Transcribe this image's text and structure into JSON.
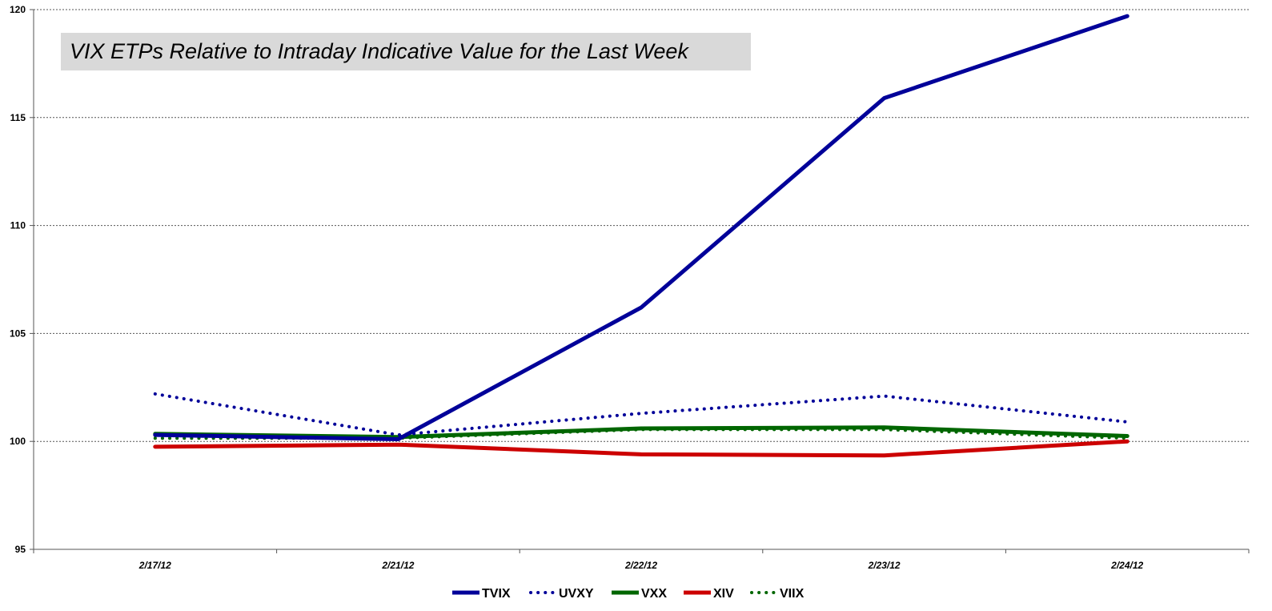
{
  "chart_data": {
    "type": "line",
    "title": "VIX ETPs Relative to Intraday Indicative Value for the Last Week",
    "xlabel": "",
    "ylabel": "",
    "categories": [
      "2/17/12",
      "2/21/12",
      "2/22/12",
      "2/23/12",
      "2/24/12"
    ],
    "ylim": [
      95,
      120
    ],
    "yticks": [
      95,
      100,
      105,
      110,
      115,
      120
    ],
    "grid": true,
    "legend_position": "bottom",
    "series": [
      {
        "name": "TVIX",
        "color": "#000099",
        "style": "solid",
        "values": [
          100.3,
          100.1,
          106.2,
          115.9,
          119.7
        ]
      },
      {
        "name": "UVXY",
        "color": "#000099",
        "style": "dotted",
        "values": [
          102.2,
          100.3,
          101.3,
          102.1,
          100.9
        ]
      },
      {
        "name": "VXX",
        "color": "#006600",
        "style": "solid",
        "values": [
          100.35,
          100.2,
          100.6,
          100.65,
          100.25
        ]
      },
      {
        "name": "XIV",
        "color": "#cc0000",
        "style": "solid",
        "values": [
          99.75,
          99.85,
          99.4,
          99.35,
          100.0
        ]
      },
      {
        "name": "VIIX",
        "color": "#006600",
        "style": "dotted",
        "values": [
          100.15,
          100.15,
          100.55,
          100.55,
          100.15
        ]
      }
    ]
  }
}
